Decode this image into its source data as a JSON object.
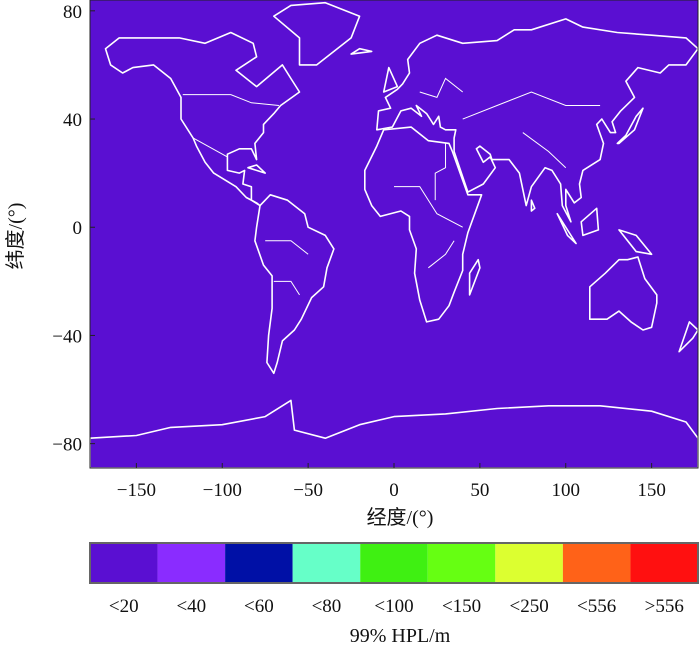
{
  "chart_data": {
    "type": "heatmap",
    "subtype": "world-map",
    "xlabel": "经度/(°)",
    "ylabel": "纬度/(°)",
    "xlim": [
      -177,
      177
    ],
    "ylim": [
      -89,
      84
    ],
    "xticks": [
      -150,
      -100,
      -50,
      0,
      50,
      100,
      150
    ],
    "yticks": [
      80,
      40,
      0,
      -40,
      -80
    ],
    "xtick_labels": [
      "−150",
      "−100",
      "−50",
      "0",
      "50",
      "100",
      "150"
    ],
    "ytick_labels": [
      "80",
      "40",
      "0",
      "−40",
      "−80"
    ],
    "field_value_class": "<20",
    "colorbar": {
      "label": "99%  HPL/m",
      "placement": "bottom",
      "classes": [
        {
          "label": "<20",
          "color": "#5a0fd2"
        },
        {
          "label": "<40",
          "color": "#8a2cff"
        },
        {
          "label": "<60",
          "color": "#0010a6"
        },
        {
          "label": "<80",
          "color": "#66ffc8"
        },
        {
          "label": "<100",
          "color": "#3ff012"
        },
        {
          "label": "<150",
          "color": "#66ff12"
        },
        {
          "label": "<250",
          "color": "#dcff30"
        },
        {
          "label": "<556",
          "color": "#ff6218"
        },
        {
          "label": ">556",
          "color": "#ff1010"
        }
      ]
    },
    "coastline_color": "#ffffff"
  }
}
